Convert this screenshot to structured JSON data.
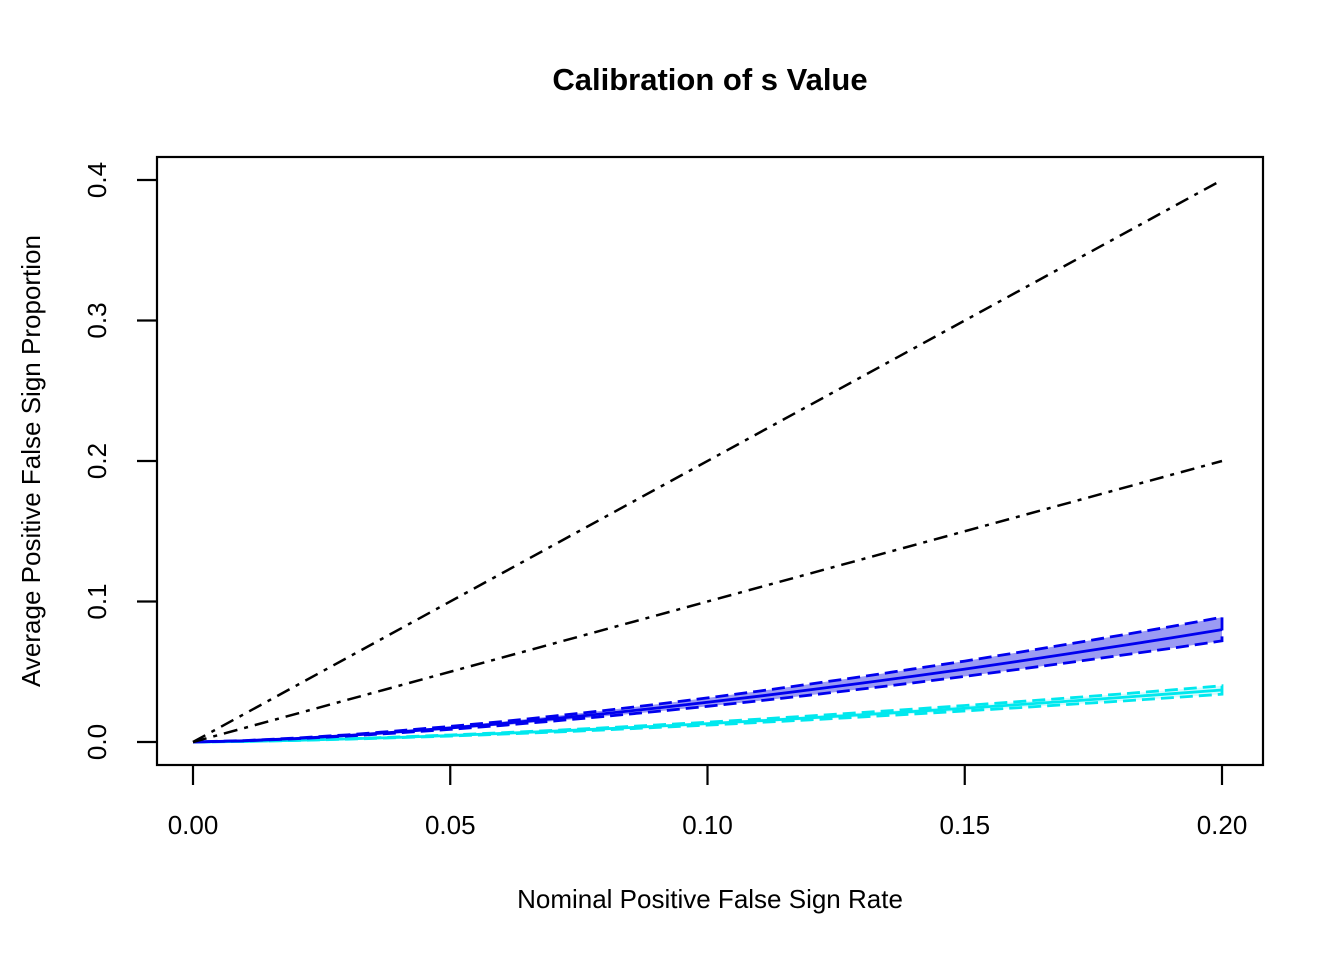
{
  "figure": {
    "background_color": "#ffffff",
    "legend": "none",
    "grid": false
  },
  "chart_data": {
    "type": "line",
    "title": "Calibration of s Value",
    "xlabel": "Nominal Positive False Sign Rate",
    "ylabel": "Average Positive False Sign Proportion",
    "xlim": [
      0,
      0.2
    ],
    "ylim": [
      0,
      0.4
    ],
    "x_tick_values": [
      0.0,
      0.05,
      0.1,
      0.15,
      0.2
    ],
    "x_tick_labels": [
      "0.00",
      "0.05",
      "0.10",
      "0.15",
      "0.20"
    ],
    "y_tick_values": [
      0.0,
      0.1,
      0.2,
      0.3,
      0.4
    ],
    "y_tick_labels": [
      "0.0",
      "0.1",
      "0.2",
      "0.3",
      "0.4"
    ],
    "axis_color": "#000000",
    "reference_lines": [
      {
        "name": "two-times-nominal-line",
        "color": "#000000",
        "linetype": "twodash",
        "x": [
          0,
          0.2
        ],
        "y": [
          0,
          0.4
        ]
      },
      {
        "name": "identity-line",
        "color": "#000000",
        "linetype": "twodash",
        "x": [
          0,
          0.2
        ],
        "y": [
          0,
          0.2
        ]
      }
    ],
    "series": [
      {
        "name": "cyan-method",
        "line_color": "#00E8EE",
        "band_fill_color": "#D6FAFC",
        "band_border_color": "#00E8EE",
        "band_border_linetype": "dashed",
        "x": [
          0,
          0.01,
          0.02,
          0.03,
          0.04,
          0.05,
          0.06,
          0.07,
          0.08,
          0.09,
          0.1,
          0.11,
          0.12,
          0.13,
          0.14,
          0.15,
          0.16,
          0.17,
          0.18,
          0.19,
          0.2
        ],
        "mean": [
          0,
          0.0004,
          0.0012,
          0.0022,
          0.0033,
          0.0046,
          0.0061,
          0.0077,
          0.0094,
          0.0112,
          0.0131,
          0.0151,
          0.0172,
          0.0194,
          0.0217,
          0.024,
          0.0265,
          0.029,
          0.0316,
          0.0343,
          0.037
        ],
        "upper": [
          0,
          0.0004,
          0.0013,
          0.0023,
          0.0036,
          0.005,
          0.0066,
          0.0083,
          0.0101,
          0.0121,
          0.0141,
          0.0163,
          0.0186,
          0.021,
          0.0234,
          0.026,
          0.0286,
          0.0313,
          0.0341,
          0.037,
          0.04
        ],
        "lower": [
          0,
          0.0004,
          0.0011,
          0.002,
          0.0031,
          0.0042,
          0.0056,
          0.007,
          0.0086,
          0.0103,
          0.012,
          0.0139,
          0.0158,
          0.0178,
          0.0199,
          0.0221,
          0.0243,
          0.0267,
          0.029,
          0.0315,
          0.034
        ]
      },
      {
        "name": "blue-method",
        "line_color": "#0000EE",
        "band_fill_color": "#9B9BF3",
        "band_border_color": "#0000EE",
        "band_border_linetype": "dashed",
        "x": [
          0,
          0.01,
          0.02,
          0.03,
          0.04,
          0.05,
          0.06,
          0.07,
          0.08,
          0.09,
          0.1,
          0.11,
          0.12,
          0.13,
          0.14,
          0.15,
          0.16,
          0.17,
          0.18,
          0.19,
          0.2
        ],
        "mean": [
          0,
          0.0009,
          0.0025,
          0.0046,
          0.0072,
          0.01,
          0.0131,
          0.0166,
          0.0202,
          0.0241,
          0.0283,
          0.0326,
          0.0372,
          0.0419,
          0.0468,
          0.0519,
          0.0572,
          0.0627,
          0.0683,
          0.074,
          0.08
        ],
        "upper": [
          0,
          0.001,
          0.0028,
          0.0051,
          0.008,
          0.0111,
          0.0145,
          0.0184,
          0.0224,
          0.0268,
          0.0314,
          0.0362,
          0.0413,
          0.0465,
          0.052,
          0.0576,
          0.0635,
          0.0696,
          0.0758,
          0.0821,
          0.0888
        ],
        "lower": [
          0,
          0.0008,
          0.0023,
          0.0042,
          0.0065,
          0.009,
          0.0118,
          0.0149,
          0.0182,
          0.0217,
          0.0254,
          0.0293,
          0.0334,
          0.0377,
          0.0421,
          0.0467,
          0.0515,
          0.0564,
          0.0615,
          0.0666,
          0.072
        ]
      }
    ]
  }
}
